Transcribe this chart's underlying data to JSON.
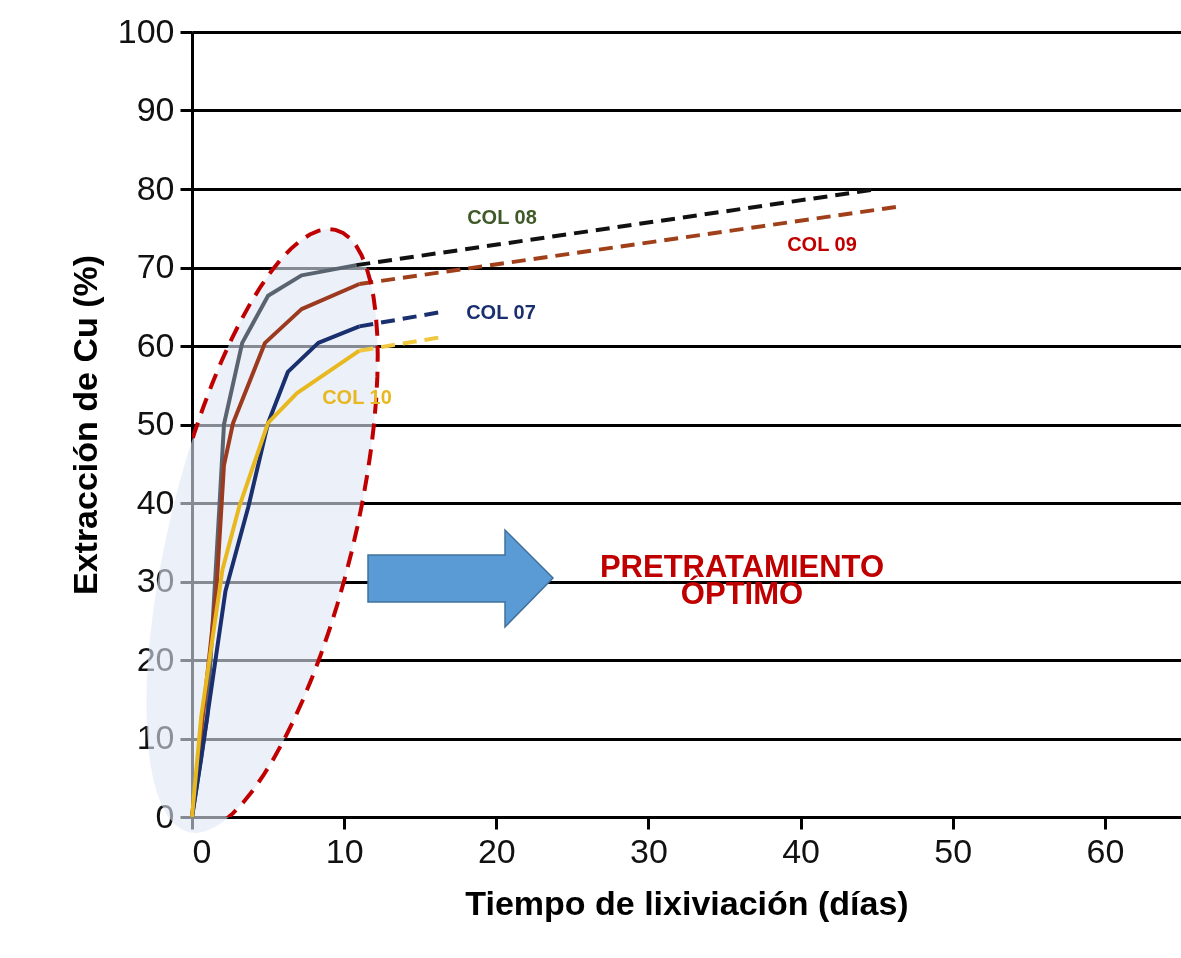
{
  "chart_data": {
    "type": "line",
    "xlabel": "Tiempo de lixiviación (días)",
    "ylabel": "Extracción de Cu (%)",
    "xlim": [
      0,
      65
    ],
    "ylim": [
      0,
      100
    ],
    "xticks": [
      0,
      10,
      20,
      30,
      40,
      50,
      60
    ],
    "yticks": [
      0,
      10,
      20,
      30,
      40,
      50,
      60,
      70,
      80,
      90,
      100
    ],
    "grid": "y",
    "series": [
      {
        "color": "#5a6470",
        "line_style": "solid",
        "x": [
          0,
          1.0,
          1.8,
          2.1,
          3.3,
          5.0,
          7.2,
          10.8
        ],
        "values": [
          0,
          12.7,
          39.5,
          50,
          60.4,
          66.4,
          69,
          70.3
        ]
      },
      {
        "color": "#111111",
        "line_style": "dashed",
        "x": [
          10.8,
          45.1
        ],
        "values": [
          70.3,
          80
        ]
      },
      {
        "color": "#9b3a1e",
        "line_style": "solid",
        "x": [
          0,
          1.6,
          2.1,
          2.7,
          4.8,
          7.2,
          11.0
        ],
        "values": [
          0,
          28.8,
          44.8,
          50.2,
          60.4,
          64.7,
          67.9
        ]
      },
      {
        "color": "#a0401a",
        "line_style": "dashed",
        "x": [
          11.0,
          46.6
        ],
        "values": [
          67.9,
          77.8
        ]
      },
      {
        "color": "#1a2f6e",
        "line_style": "solid",
        "x": [
          0,
          0.6,
          2.2,
          3.7,
          5.0,
          6.3,
          8.3,
          11.0
        ],
        "values": [
          0,
          7.4,
          28.8,
          39.5,
          50.2,
          56.7,
          60.4,
          62.5
        ]
      },
      {
        "color": "#1a2f6e",
        "line_style": "dashed",
        "x": [
          11.0,
          16.3
        ],
        "values": [
          62.5,
          64.3
        ]
      },
      {
        "color": "#e8b820",
        "line_style": "solid",
        "x": [
          0,
          0.6,
          2.0,
          3.1,
          5.0,
          6.9,
          11.0
        ],
        "values": [
          0,
          12.7,
          31.5,
          39.5,
          50.2,
          54,
          59.4
        ]
      },
      {
        "color": "#f0c840",
        "line_style": "dashed",
        "x": [
          11.0,
          16.3
        ],
        "values": [
          59.4,
          61.1
        ]
      }
    ],
    "annotations": [
      "COL 08",
      "COL 09",
      "COL 07",
      "COL 10",
      "PRETRATAMIENTO\nÓPTIMO"
    ]
  }
}
